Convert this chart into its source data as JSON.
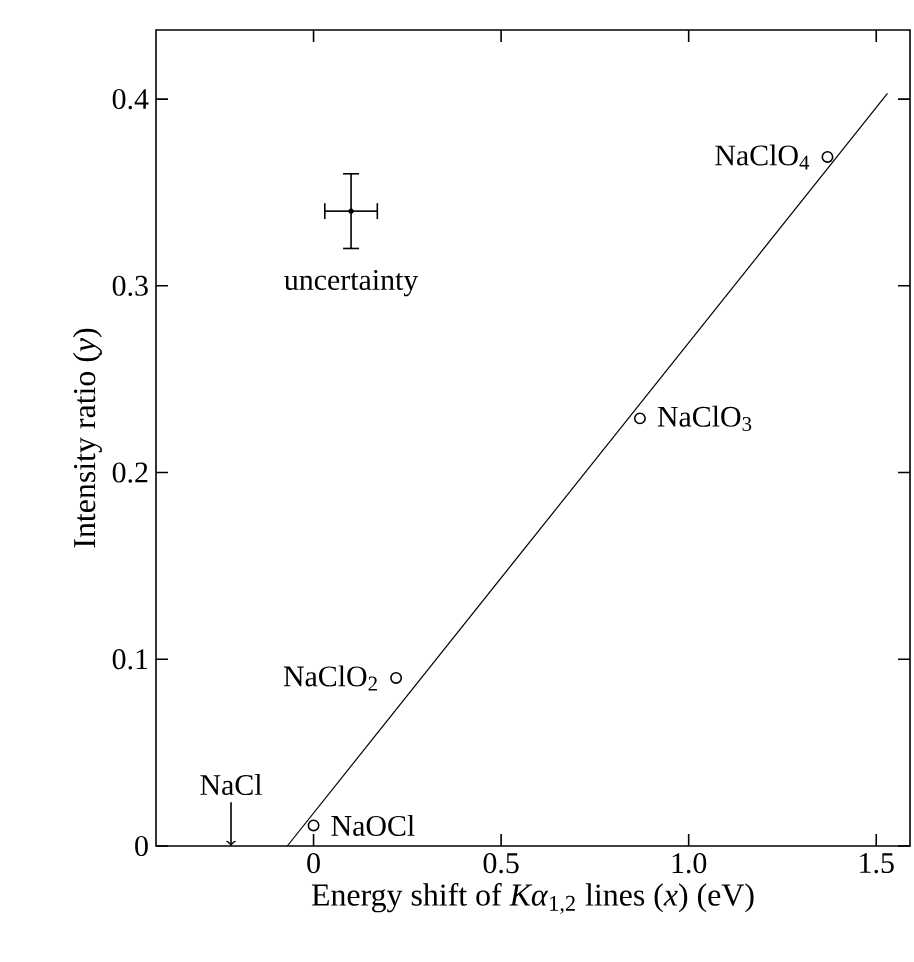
{
  "chart_data": {
    "type": "scatter",
    "xlabel": "Energy shift of *Kα*$_{1,2}$ lines (*x*) (eV)",
    "ylabel": "Intensity ratio (*y*)",
    "xlim": [
      -0.42,
      1.59
    ],
    "ylim": [
      0,
      0.437
    ],
    "xticks": [
      0,
      0.5,
      {
        "value": 1,
        "label": "1.0"
      },
      1.5
    ],
    "yticks": [
      {
        "value": 0,
        "label": "0"
      },
      0.1,
      0.2,
      0.3,
      0.4
    ],
    "series": [
      {
        "type": "scatter",
        "color": "#000000",
        "marker": "circle",
        "x": [
          1.37,
          0.87,
          0.22,
          0
        ],
        "values": [
          0.369,
          0.229,
          0.09,
          0.011
        ]
      },
      {
        "type": "line",
        "color": "#000000",
        "marker": "none",
        "x": [
          -0.07,
          1.53
        ],
        "values": [
          0,
          0.403
        ]
      },
      {
        "type": "scatter",
        "name": "uncertainty",
        "color": "#000000",
        "x": [
          0.1
        ],
        "values": [
          0.34
        ],
        "errors": [
          0.02
        ],
        "xerrors": [
          0.07
        ]
      }
    ],
    "annotations": [
      {
        "text": "NaClO$_{4}$",
        "x": 1.37,
        "y": 0.369
      },
      {
        "text": "NaClO$_{3}$",
        "x": 0.87,
        "y": 0.229
      },
      {
        "text": "NaClO$_{2}$",
        "x": 0.22,
        "y": 0.09
      },
      {
        "text": "NaOCl",
        "x": 0,
        "y": 0.011
      },
      {
        "text": "NaCl",
        "x": -0.22,
        "y": 0
      }
    ]
  }
}
